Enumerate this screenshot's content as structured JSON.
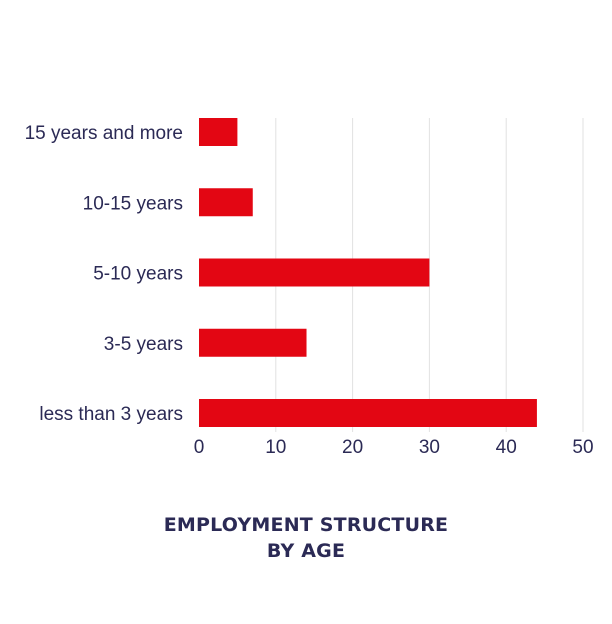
{
  "chart_data": {
    "type": "bar",
    "orientation": "horizontal",
    "title_lines": [
      "EMPLOYMENT STRUCTURE",
      "BY AGE"
    ],
    "categories": [
      "15 years and more",
      "10-15 years",
      "5-10 years",
      "3-5 years",
      "less than 3 years"
    ],
    "values": [
      5,
      7,
      30,
      14,
      44
    ],
    "xlim": [
      0,
      50
    ],
    "xticks": [
      "0",
      "10",
      "20",
      "30",
      "40",
      "50"
    ],
    "grid": "vertical",
    "legend": "none",
    "colors": {
      "bar": "#e30613",
      "grid": "#e2e2e2",
      "text": "#2b2a55"
    }
  }
}
